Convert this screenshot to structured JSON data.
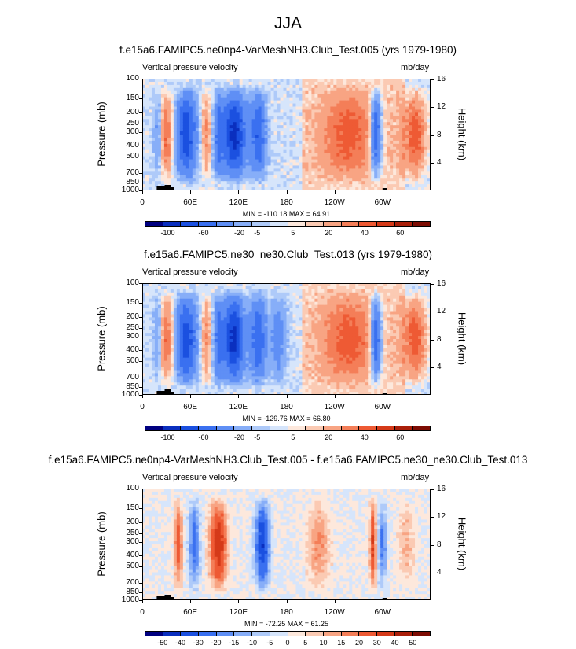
{
  "main_title": "JJA",
  "chart_data": [
    {
      "type": "heatmap",
      "title": "f.e15a6.FAMIPC5.ne0np4-VarMeshNH3.Club_Test.005 (yrs 1979-1980)",
      "left_label": "Vertical pressure velocity",
      "units_label": "mb/day",
      "ylabel": "Pressure (mb)",
      "ylabel_right": "Height (km)",
      "yticks": [
        "100",
        "150",
        "200",
        "250",
        "300",
        "400",
        "500",
        "700",
        "850",
        "1000"
      ],
      "yticks_right": [
        "16",
        "12",
        "8",
        "4"
      ],
      "xticks": [
        "0",
        "60E",
        "120E",
        "180",
        "120W",
        "60W"
      ],
      "minmax": "MIN = -110.18  MAX = 64.91",
      "levels": [
        "-100",
        "-60",
        "-20",
        "-5",
        "5",
        "20",
        "40",
        "60"
      ],
      "colors": [
        "#000080",
        "#0a2fbf",
        "#1b50e0",
        "#3a70f0",
        "#5f8ff5",
        "#87aef8",
        "#aecaf9",
        "#d6e5fb",
        "#fde8dc",
        "#fbcab3",
        "#f8a483",
        "#f47e58",
        "#ee5a34",
        "#d53a19",
        "#aa1f0a",
        "#7d0c03"
      ]
    },
    {
      "type": "heatmap",
      "title": "f.e15a6.FAMIPC5.ne30_ne30.Club_Test.013 (yrs 1979-1980)",
      "left_label": "Vertical pressure velocity",
      "units_label": "mb/day",
      "ylabel": "Pressure (mb)",
      "ylabel_right": "Height (km)",
      "yticks": [
        "100",
        "150",
        "200",
        "250",
        "300",
        "400",
        "500",
        "700",
        "850",
        "1000"
      ],
      "yticks_right": [
        "16",
        "12",
        "8",
        "4"
      ],
      "xticks": [
        "0",
        "60E",
        "120E",
        "180",
        "120W",
        "60W"
      ],
      "minmax": "MIN = -129.76  MAX = 66.80",
      "levels": [
        "-100",
        "-60",
        "-20",
        "-5",
        "5",
        "20",
        "40",
        "60"
      ],
      "colors": [
        "#000080",
        "#0a2fbf",
        "#1b50e0",
        "#3a70f0",
        "#5f8ff5",
        "#87aef8",
        "#aecaf9",
        "#d6e5fb",
        "#fde8dc",
        "#fbcab3",
        "#f8a483",
        "#f47e58",
        "#ee5a34",
        "#d53a19",
        "#aa1f0a",
        "#7d0c03"
      ]
    },
    {
      "type": "heatmap",
      "title": "f.e15a6.FAMIPC5.ne0np4-VarMeshNH3.Club_Test.005 - f.e15a6.FAMIPC5.ne30_ne30.Club_Test.013",
      "left_label": "Vertical pressure velocity",
      "units_label": "mb/day",
      "ylabel": "Pressure (mb)",
      "ylabel_right": "Height (km)",
      "yticks": [
        "100",
        "150",
        "200",
        "250",
        "300",
        "400",
        "500",
        "700",
        "850",
        "1000"
      ],
      "yticks_right": [
        "16",
        "12",
        "8",
        "4"
      ],
      "xticks": [
        "0",
        "60E",
        "120E",
        "180",
        "120W",
        "60W"
      ],
      "minmax": "MIN = -72.25  MAX = 61.25",
      "levels": [
        "-50",
        "-40",
        "-30",
        "-20",
        "-15",
        "-10",
        "-5",
        "0",
        "5",
        "10",
        "15",
        "20",
        "30",
        "40",
        "50"
      ],
      "colors": [
        "#000080",
        "#0a2fbf",
        "#1b50e0",
        "#3a70f0",
        "#5f8ff5",
        "#87aef8",
        "#aecaf9",
        "#d6e5fb",
        "#fde8dc",
        "#fbcab3",
        "#f8a483",
        "#f47e58",
        "#ee5a34",
        "#d53a19",
        "#aa1f0a",
        "#7d0c03"
      ]
    }
  ]
}
